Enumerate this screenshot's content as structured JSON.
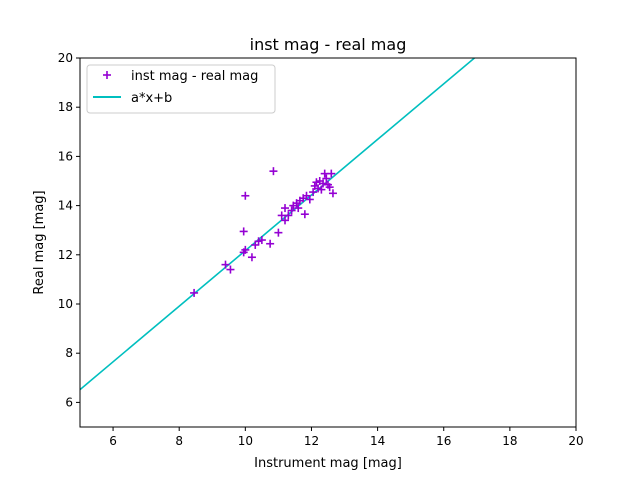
{
  "chart_data": {
    "type": "scatter",
    "title": "inst mag - real mag",
    "xlabel": "Instrument mag [mag]",
    "ylabel": "Real mag [mag]",
    "xlim": [
      5,
      20
    ],
    "ylim": [
      5,
      20
    ],
    "xticks": [
      "6",
      "8",
      "10",
      "12",
      "14",
      "16",
      "18",
      "20"
    ],
    "yticks": [
      "6",
      "8",
      "10",
      "12",
      "14",
      "16",
      "18",
      "20"
    ],
    "grid": false,
    "legend_position": "top-left",
    "series": [
      {
        "name": "inst mag - real mag",
        "kind": "scatter",
        "marker": "plus",
        "color": "#9400d3",
        "points": [
          [
            8.45,
            10.45
          ],
          [
            9.4,
            11.6
          ],
          [
            9.55,
            11.4
          ],
          [
            9.95,
            12.1
          ],
          [
            10.0,
            12.2
          ],
          [
            9.95,
            12.95
          ],
          [
            10.0,
            14.4
          ],
          [
            10.2,
            11.9
          ],
          [
            10.3,
            12.4
          ],
          [
            10.4,
            12.55
          ],
          [
            10.5,
            12.6
          ],
          [
            10.75,
            12.45
          ],
          [
            10.85,
            15.4
          ],
          [
            11.0,
            12.9
          ],
          [
            11.1,
            13.6
          ],
          [
            11.2,
            13.4
          ],
          [
            11.2,
            13.9
          ],
          [
            11.3,
            13.6
          ],
          [
            11.4,
            13.8
          ],
          [
            11.45,
            14.0
          ],
          [
            11.55,
            14.1
          ],
          [
            11.6,
            13.9
          ],
          [
            11.65,
            14.2
          ],
          [
            11.75,
            14.3
          ],
          [
            11.8,
            13.65
          ],
          [
            11.85,
            14.4
          ],
          [
            11.95,
            14.25
          ],
          [
            12.05,
            14.55
          ],
          [
            12.1,
            14.8
          ],
          [
            12.15,
            14.95
          ],
          [
            12.2,
            14.7
          ],
          [
            12.25,
            15.0
          ],
          [
            12.3,
            14.65
          ],
          [
            12.35,
            14.9
          ],
          [
            12.4,
            15.3
          ],
          [
            12.45,
            15.1
          ],
          [
            12.5,
            14.85
          ],
          [
            12.55,
            14.75
          ],
          [
            12.6,
            15.3
          ],
          [
            12.65,
            14.5
          ]
        ]
      },
      {
        "name": "a*x+b",
        "kind": "line",
        "color": "#00bfbf",
        "slope": 1.13,
        "intercept": 0.87
      }
    ]
  }
}
